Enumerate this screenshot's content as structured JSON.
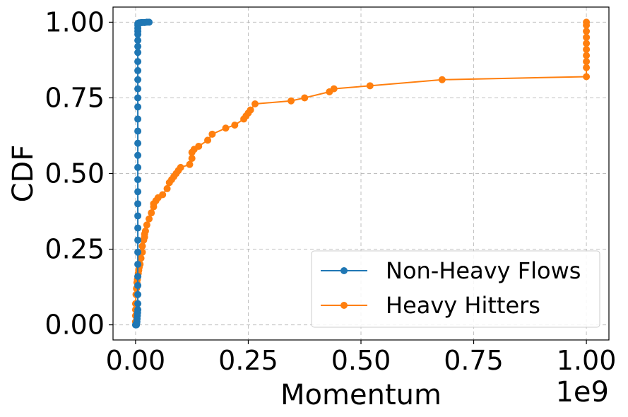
{
  "chart_data": {
    "type": "line",
    "xlabel": "Momentum",
    "ylabel": "CDF",
    "x_offset_label": "1e9",
    "x_scale_factor": 1000000000,
    "xlim": [
      -0.05,
      1.05
    ],
    "ylim": [
      -0.05,
      1.05
    ],
    "xticks": [
      0.0,
      0.25,
      0.5,
      0.75,
      1.0
    ],
    "xtick_labels": [
      "0.00",
      "0.25",
      "0.50",
      "0.75",
      "1.00"
    ],
    "yticks": [
      0.0,
      0.25,
      0.5,
      0.75,
      1.0
    ],
    "ytick_labels": [
      "0.00",
      "0.25",
      "0.50",
      "0.75",
      "1.00"
    ],
    "grid": true,
    "legend_position": "lower-right",
    "series": [
      {
        "name": "Non-Heavy Flows",
        "color": "#1f77b4",
        "x": [
          0.0,
          0.0005,
          0.001,
          0.0015,
          0.002,
          0.0025,
          0.003,
          0.0035,
          0.004,
          0.0045,
          0.005,
          0.005,
          0.005,
          0.005,
          0.005,
          0.005,
          0.005,
          0.005,
          0.005,
          0.005,
          0.005,
          0.005,
          0.005,
          0.005,
          0.005,
          0.005,
          0.005,
          0.005,
          0.005,
          0.005,
          0.005,
          0.005,
          0.005,
          0.005,
          0.005,
          0.005,
          0.005,
          0.005,
          0.005,
          0.005,
          0.005,
          0.005,
          0.006,
          0.008,
          0.01,
          0.013,
          0.016,
          0.02,
          0.025,
          0.03
        ],
        "y": [
          0.0,
          0.0,
          0.0,
          0.0,
          0.0,
          0.005,
          0.01,
          0.02,
          0.03,
          0.04,
          0.05,
          0.07,
          0.1,
          0.13,
          0.16,
          0.2,
          0.24,
          0.28,
          0.32,
          0.36,
          0.4,
          0.44,
          0.48,
          0.52,
          0.56,
          0.6,
          0.64,
          0.68,
          0.72,
          0.75,
          0.78,
          0.81,
          0.84,
          0.87,
          0.9,
          0.92,
          0.94,
          0.96,
          0.97,
          0.98,
          0.99,
          0.995,
          0.997,
          0.998,
          0.998,
          0.999,
          0.999,
          0.999,
          1.0,
          1.0
        ]
      },
      {
        "name": "Heavy Hitters",
        "color": "#ff7f0e",
        "x": [
          0.0,
          0.0,
          0.0,
          0.0,
          0.001,
          0.002,
          0.003,
          0.004,
          0.005,
          0.006,
          0.007,
          0.008,
          0.01,
          0.012,
          0.015,
          0.015,
          0.018,
          0.02,
          0.02,
          0.022,
          0.025,
          0.03,
          0.035,
          0.04,
          0.04,
          0.045,
          0.05,
          0.06,
          0.07,
          0.075,
          0.08,
          0.085,
          0.09,
          0.095,
          0.1,
          0.12,
          0.125,
          0.125,
          0.13,
          0.14,
          0.16,
          0.17,
          0.2,
          0.22,
          0.24,
          0.245,
          0.25,
          0.255,
          0.265,
          0.345,
          0.375,
          0.43,
          0.44,
          0.52,
          0.68,
          1.0,
          1.0,
          1.0,
          1.0,
          1.0,
          1.0,
          1.0,
          1.0,
          1.0,
          1.0
        ],
        "y": [
          0.01,
          0.03,
          0.05,
          0.07,
          0.1,
          0.12,
          0.14,
          0.15,
          0.16,
          0.17,
          0.18,
          0.19,
          0.2,
          0.22,
          0.24,
          0.26,
          0.28,
          0.29,
          0.3,
          0.31,
          0.33,
          0.35,
          0.37,
          0.39,
          0.4,
          0.41,
          0.42,
          0.43,
          0.45,
          0.47,
          0.48,
          0.49,
          0.5,
          0.51,
          0.52,
          0.53,
          0.55,
          0.57,
          0.58,
          0.59,
          0.61,
          0.63,
          0.65,
          0.66,
          0.68,
          0.69,
          0.7,
          0.71,
          0.73,
          0.74,
          0.75,
          0.77,
          0.78,
          0.79,
          0.81,
          0.82,
          0.85,
          0.87,
          0.89,
          0.91,
          0.93,
          0.95,
          0.97,
          0.99,
          1.0
        ]
      }
    ]
  }
}
